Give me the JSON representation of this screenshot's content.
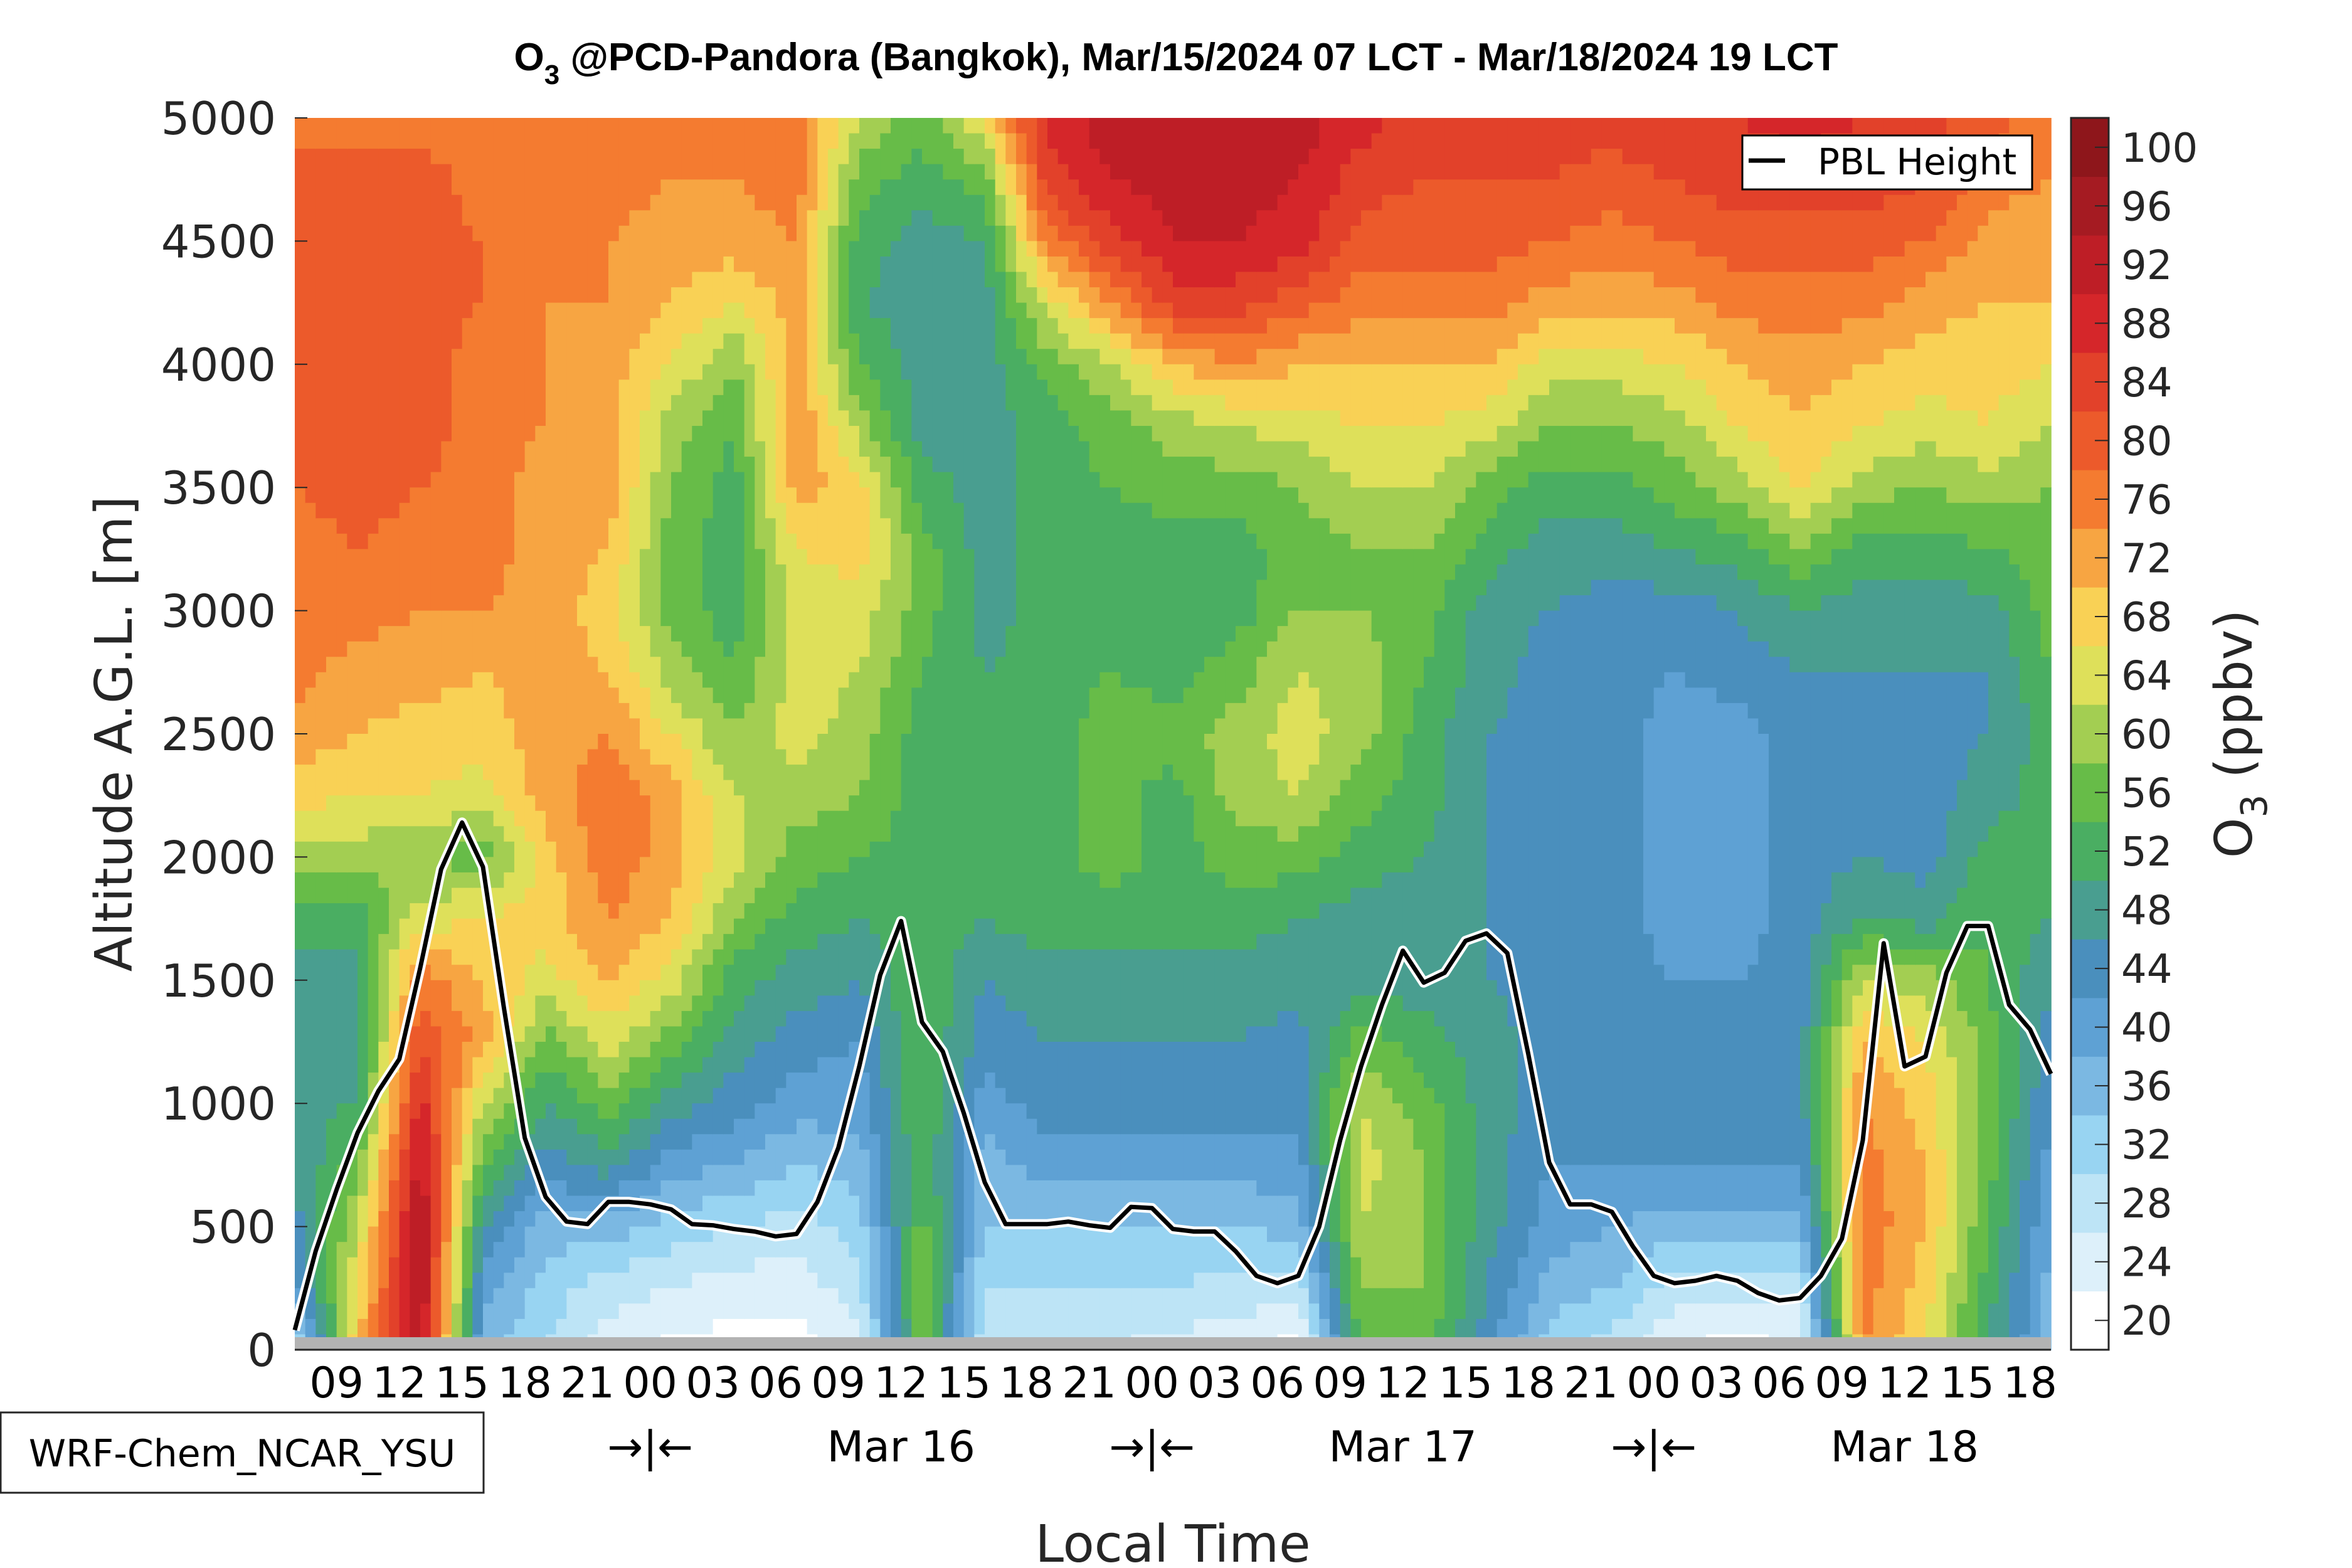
{
  "chart_data": {
    "type": "heatmap",
    "subtype": "filled-contour",
    "title_main": "O",
    "title_sub": "3",
    "title_rest": " @PCD-Pandora (Bangkok), Mar/15/2024 07 LCT - Mar/18/2024 19 LCT",
    "xlabel": "Local Time",
    "ylabel": "Altitude A.G.L. [m]",
    "colorbar_label_main": "O",
    "colorbar_label_sub": "3",
    "colorbar_label_rest": " (ppbv)",
    "model_label": "WRF-Chem_NCAR_YSU",
    "legend": {
      "label": "PBL Height",
      "placement": "top-right"
    },
    "x_range_hours": [
      0,
      84
    ],
    "x_start": "Mar/15/2024 07 LCT",
    "ylim": [
      0,
      5000
    ],
    "y_ticks": [
      0,
      500,
      1000,
      1500,
      2000,
      2500,
      3000,
      3500,
      4000,
      4500,
      5000
    ],
    "x_ticks": [
      {
        "h": 2,
        "label": "09"
      },
      {
        "h": 5,
        "label": "12"
      },
      {
        "h": 8,
        "label": "15"
      },
      {
        "h": 11,
        "label": "18"
      },
      {
        "h": 14,
        "label": "21"
      },
      {
        "h": 17,
        "label": "00"
      },
      {
        "h": 20,
        "label": "03"
      },
      {
        "h": 23,
        "label": "06"
      },
      {
        "h": 26,
        "label": "09"
      },
      {
        "h": 29,
        "label": "12"
      },
      {
        "h": 32,
        "label": "15"
      },
      {
        "h": 35,
        "label": "18"
      },
      {
        "h": 38,
        "label": "21"
      },
      {
        "h": 41,
        "label": "00"
      },
      {
        "h": 44,
        "label": "03"
      },
      {
        "h": 47,
        "label": "06"
      },
      {
        "h": 50,
        "label": "09"
      },
      {
        "h": 53,
        "label": "12"
      },
      {
        "h": 56,
        "label": "15"
      },
      {
        "h": 59,
        "label": "18"
      },
      {
        "h": 62,
        "label": "21"
      },
      {
        "h": 65,
        "label": "00"
      },
      {
        "h": 68,
        "label": "03"
      },
      {
        "h": 71,
        "label": "06"
      },
      {
        "h": 74,
        "label": "09"
      },
      {
        "h": 77,
        "label": "12"
      },
      {
        "h": 80,
        "label": "15"
      },
      {
        "h": 83,
        "label": "18"
      }
    ],
    "day_markers": [
      {
        "h": 17,
        "label": "→|←"
      },
      {
        "h": 29,
        "label": "Mar 16"
      },
      {
        "h": 41,
        "label": "→|←"
      },
      {
        "h": 53,
        "label": "Mar 17"
      },
      {
        "h": 65,
        "label": "→|←"
      },
      {
        "h": 77,
        "label": "Mar 18"
      }
    ],
    "colorbar": {
      "levels": [
        20,
        24,
        28,
        32,
        36,
        40,
        44,
        48,
        52,
        56,
        60,
        64,
        68,
        72,
        76,
        80,
        84,
        88,
        92,
        96,
        100
      ],
      "colors": [
        "#ffffff",
        "#ddf0fa",
        "#bde4f6",
        "#98d4f2",
        "#7bb8e2",
        "#5ea1d4",
        "#4a8fbd",
        "#499e90",
        "#4aae62",
        "#67bc48",
        "#a3ce52",
        "#dee05a",
        "#f9d155",
        "#f7a542",
        "#f47b30",
        "#ec5a2b",
        "#e2412a",
        "#d5262a",
        "#be1e26",
        "#a51b22",
        "#8e161b"
      ]
    },
    "field": {
      "x_hours": [
        0,
        3,
        6,
        9,
        12,
        15,
        18,
        21,
        24,
        27,
        30,
        33,
        36,
        39,
        42,
        45,
        48,
        51,
        54,
        57,
        60,
        63,
        66,
        69,
        72,
        75,
        78,
        81,
        84
      ],
      "z_levels_top_to_bottom": [
        5000,
        4750,
        4500,
        4250,
        4000,
        3750,
        3500,
        3250,
        3000,
        2750,
        2500,
        2250,
        2000,
        1750,
        1500,
        1250,
        1000,
        750,
        500,
        250,
        0
      ],
      "values_by_column": [
        [
          78,
          78,
          80,
          80,
          80,
          80,
          78,
          76,
          76,
          76,
          72,
          68,
          60,
          52,
          48,
          48,
          48,
          46,
          44,
          40,
          26
        ],
        [
          76,
          80,
          80,
          82,
          82,
          82,
          80,
          78,
          76,
          72,
          70,
          66,
          60,
          52,
          48,
          48,
          50,
          56,
          62,
          66,
          70
        ],
        [
          76,
          80,
          80,
          80,
          80,
          80,
          78,
          76,
          74,
          72,
          68,
          66,
          58,
          64,
          76,
          82,
          88,
          92,
          95,
          95,
          93
        ],
        [
          76,
          76,
          78,
          78,
          76,
          76,
          76,
          76,
          74,
          70,
          68,
          64,
          56,
          66,
          70,
          72,
          62,
          54,
          46,
          40,
          36
        ],
        [
          76,
          76,
          76,
          74,
          74,
          74,
          72,
          72,
          72,
          72,
          72,
          72,
          68,
          68,
          64,
          56,
          50,
          44,
          36,
          32,
          30
        ],
        [
          76,
          76,
          74,
          74,
          72,
          72,
          72,
          70,
          68,
          70,
          74,
          77,
          77,
          74,
          70,
          64,
          56,
          48,
          36,
          28,
          24
        ],
        [
          74,
          74,
          72,
          70,
          66,
          60,
          58,
          56,
          56,
          60,
          66,
          72,
          72,
          70,
          64,
          56,
          48,
          40,
          32,
          26,
          21
        ],
        [
          76,
          74,
          72,
          66,
          58,
          54,
          52,
          52,
          52,
          54,
          58,
          62,
          64,
          58,
          52,
          48,
          44,
          38,
          30,
          24,
          20
        ],
        [
          76,
          76,
          74,
          72,
          72,
          74,
          72,
          66,
          64,
          64,
          64,
          60,
          56,
          52,
          48,
          44,
          40,
          34,
          28,
          24,
          20
        ],
        [
          62,
          56,
          52,
          50,
          54,
          60,
          68,
          68,
          64,
          62,
          60,
          58,
          54,
          50,
          46,
          42,
          40,
          36,
          32,
          28,
          24
        ],
        [
          56,
          52,
          48,
          48,
          48,
          48,
          52,
          56,
          56,
          54,
          52,
          52,
          52,
          52,
          54,
          54,
          54,
          54,
          56,
          58,
          58
        ],
        [
          66,
          56,
          50,
          48,
          48,
          48,
          48,
          48,
          48,
          50,
          52,
          52,
          52,
          50,
          46,
          44,
          40,
          36,
          34,
          30,
          26
        ],
        [
          88,
          84,
          76,
          64,
          56,
          52,
          52,
          52,
          52,
          52,
          52,
          52,
          52,
          52,
          48,
          46,
          44,
          40,
          34,
          30,
          26
        ],
        [
          92,
          90,
          84,
          74,
          62,
          56,
          54,
          52,
          52,
          54,
          56,
          56,
          56,
          52,
          48,
          46,
          44,
          40,
          34,
          30,
          26
        ],
        [
          92,
          92,
          90,
          84,
          70,
          60,
          56,
          52,
          52,
          52,
          56,
          52,
          52,
          52,
          48,
          46,
          44,
          40,
          34,
          30,
          24
        ],
        [
          92,
          92,
          90,
          84,
          74,
          62,
          56,
          52,
          52,
          56,
          60,
          60,
          56,
          52,
          48,
          46,
          44,
          40,
          34,
          28,
          24
        ],
        [
          92,
          90,
          88,
          80,
          70,
          64,
          58,
          56,
          58,
          62,
          64,
          62,
          56,
          50,
          48,
          44,
          44,
          40,
          36,
          28,
          20
        ],
        [
          88,
          84,
          80,
          76,
          70,
          66,
          62,
          58,
          58,
          60,
          60,
          56,
          52,
          48,
          48,
          56,
          62,
          64,
          62,
          58,
          56
        ],
        [
          84,
          82,
          80,
          76,
          70,
          66,
          62,
          58,
          56,
          54,
          52,
          52,
          50,
          48,
          48,
          52,
          56,
          58,
          58,
          58,
          56
        ],
        [
          84,
          82,
          80,
          76,
          70,
          64,
          56,
          52,
          48,
          48,
          46,
          46,
          46,
          46,
          46,
          48,
          48,
          48,
          48,
          46,
          44
        ],
        [
          84,
          82,
          78,
          72,
          64,
          58,
          52,
          48,
          46,
          44,
          44,
          44,
          44,
          44,
          44,
          44,
          44,
          42,
          40,
          36,
          32
        ],
        [
          84,
          80,
          76,
          72,
          64,
          58,
          52,
          48,
          44,
          44,
          44,
          44,
          44,
          44,
          44,
          44,
          44,
          42,
          38,
          34,
          28
        ],
        [
          86,
          82,
          78,
          72,
          66,
          60,
          56,
          50,
          44,
          42,
          40,
          40,
          40,
          40,
          42,
          44,
          44,
          42,
          36,
          28,
          22
        ],
        [
          86,
          84,
          80,
          76,
          70,
          66,
          60,
          52,
          46,
          44,
          40,
          40,
          40,
          40,
          42,
          44,
          44,
          42,
          36,
          28,
          20
        ],
        [
          88,
          84,
          80,
          76,
          72,
          70,
          66,
          58,
          50,
          46,
          44,
          44,
          44,
          44,
          44,
          44,
          44,
          42,
          36,
          28,
          22
        ],
        [
          86,
          84,
          80,
          76,
          70,
          66,
          60,
          52,
          48,
          46,
          44,
          44,
          46,
          50,
          62,
          70,
          74,
          76,
          77,
          76,
          74
        ],
        [
          84,
          82,
          78,
          72,
          68,
          64,
          58,
          52,
          48,
          46,
          44,
          44,
          44,
          48,
          60,
          66,
          68,
          70,
          70,
          68,
          66
        ],
        [
          80,
          76,
          72,
          70,
          68,
          66,
          60,
          54,
          48,
          46,
          46,
          48,
          52,
          54,
          54,
          56,
          56,
          56,
          54,
          52,
          50
        ],
        [
          76,
          74,
          72,
          70,
          66,
          62,
          58,
          56,
          56,
          54,
          52,
          52,
          52,
          50,
          46,
          44,
          42,
          40,
          38,
          36,
          36
        ]
      ]
    },
    "pbl_height": {
      "name": "PBL Height",
      "hours": [
        0,
        1,
        2,
        3,
        4,
        5,
        6,
        7,
        8,
        9,
        10,
        11,
        12,
        13,
        14,
        15,
        16,
        17,
        18,
        19,
        20,
        21,
        22,
        23,
        24,
        25,
        26,
        27,
        28,
        29,
        30,
        31,
        32,
        33,
        34,
        35,
        36,
        37,
        38,
        39,
        40,
        41,
        42,
        43,
        44,
        45,
        46,
        47,
        48,
        49,
        50,
        51,
        52,
        53,
        54,
        55,
        56,
        57,
        58,
        59,
        60,
        61,
        62,
        63,
        64,
        65,
        66,
        67,
        68,
        69,
        70,
        71,
        72,
        73,
        74,
        75,
        76,
        77,
        78,
        79,
        80,
        81,
        82,
        83,
        84
      ],
      "values_m": [
        80,
        400,
        650,
        880,
        1050,
        1180,
        1550,
        1950,
        2140,
        1960,
        1390,
        860,
        620,
        520,
        510,
        600,
        600,
        590,
        570,
        510,
        505,
        490,
        480,
        460,
        470,
        600,
        820,
        1150,
        1520,
        1740,
        1330,
        1210,
        960,
        680,
        510,
        510,
        510,
        520,
        505,
        495,
        580,
        575,
        490,
        480,
        480,
        400,
        300,
        270,
        300,
        500,
        850,
        1150,
        1400,
        1620,
        1490,
        1530,
        1660,
        1690,
        1610,
        1200,
        760,
        590,
        590,
        560,
        420,
        300,
        270,
        280,
        300,
        280,
        230,
        200,
        210,
        300,
        450,
        850,
        1650,
        1150,
        1190,
        1530,
        1720,
        1720,
        1400,
        1300,
        1120
      ]
    }
  }
}
